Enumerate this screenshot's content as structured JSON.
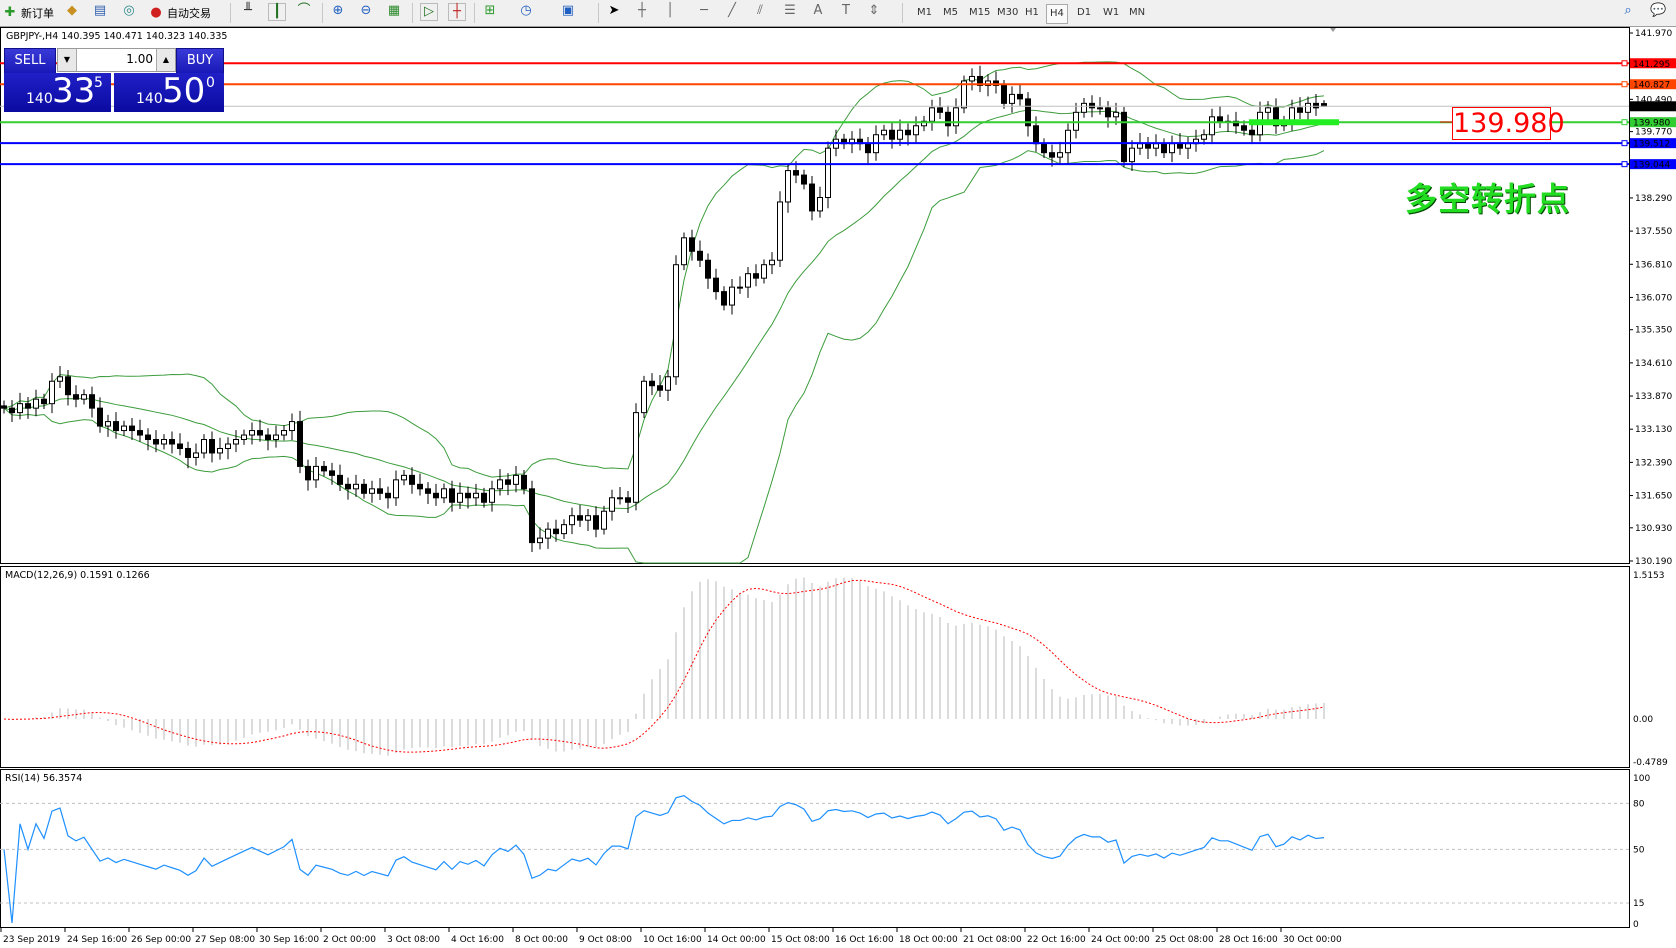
{
  "toolbar": {
    "new_order": "新订单",
    "auto_trading": "自动交易",
    "timeframes": [
      "M1",
      "M5",
      "M15",
      "M30",
      "H1",
      "H4",
      "D1",
      "W1",
      "MN"
    ],
    "active_timeframe": "H4"
  },
  "chart_header": "GBPJPY-,H4  140.395 140.471 140.323 140.335",
  "one_click": {
    "sell_label": "SELL",
    "buy_label": "BUY",
    "lot": "1.00",
    "sell_prefix": "140",
    "sell_big": "33",
    "sell_sup": "5",
    "buy_prefix": "140",
    "buy_big": "50",
    "buy_sup": "0"
  },
  "annotation": {
    "price_box": "139.980",
    "text": "多空转折点"
  },
  "colors": {
    "bollinger": "#3c9c3c",
    "red_line": "#ff0000",
    "orange_line": "#ff4500",
    "green_line": "#32cd32",
    "blue_line": "#0000ff",
    "rsi": "#1e90ff",
    "macd_signal": "#ff0000",
    "macd_hist": "#b8b8b8"
  },
  "chart_data": {
    "type": "candlestick",
    "symbol": "GBPJPY-",
    "timeframe": "H4",
    "ohlc_last": {
      "open": 140.395,
      "high": 140.471,
      "low": 140.323,
      "close": 140.335
    },
    "closes": [
      133.6,
      133.5,
      133.7,
      133.6,
      133.8,
      133.7,
      134.2,
      134.3,
      133.9,
      133.8,
      133.9,
      133.6,
      133.2,
      133.3,
      133.1,
      133.2,
      133.1,
      133.0,
      132.9,
      132.8,
      132.9,
      132.8,
      132.7,
      132.5,
      132.6,
      132.9,
      132.6,
      132.7,
      132.8,
      132.9,
      133.0,
      133.1,
      133.0,
      132.9,
      133.0,
      133.1,
      133.3,
      132.3,
      132.0,
      132.3,
      132.2,
      132.1,
      131.9,
      131.8,
      131.9,
      131.7,
      131.8,
      131.7,
      131.6,
      132.0,
      132.1,
      131.9,
      131.8,
      131.7,
      131.6,
      131.8,
      131.5,
      131.7,
      131.6,
      131.7,
      131.5,
      131.8,
      132.0,
      131.9,
      132.1,
      131.8,
      130.6,
      130.7,
      130.9,
      130.8,
      131.0,
      131.2,
      131.1,
      131.2,
      130.9,
      131.3,
      131.6,
      131.6,
      131.5,
      133.5,
      134.2,
      134.1,
      134.0,
      134.3,
      136.8,
      137.4,
      137.1,
      136.9,
      136.5,
      136.2,
      135.9,
      136.3,
      136.3,
      136.6,
      136.5,
      136.8,
      136.9,
      138.2,
      138.9,
      138.8,
      138.6,
      138.0,
      138.3,
      139.4,
      139.6,
      139.5,
      139.6,
      139.5,
      139.3,
      139.7,
      139.8,
      139.6,
      139.8,
      139.7,
      139.9,
      140.0,
      140.3,
      140.2,
      139.9,
      140.3,
      140.9,
      141.0,
      140.8,
      140.9,
      140.8,
      140.4,
      140.6,
      140.5,
      139.9,
      139.5,
      139.3,
      139.2,
      139.3,
      139.8,
      140.2,
      140.4,
      140.3,
      140.3,
      140.1,
      140.2,
      139.1,
      139.4,
      139.5,
      139.4,
      139.5,
      139.3,
      139.5,
      139.4,
      139.5,
      139.6,
      139.7,
      140.1,
      140.0,
      140.0,
      139.9,
      139.8,
      139.7,
      140.2,
      140.3,
      139.9,
      140.0,
      140.3,
      140.2,
      140.4,
      140.3,
      140.335
    ],
    "price_axis": [
      "141.970",
      "140.490",
      "139.770",
      "138.290",
      "137.550",
      "136.810",
      "136.070",
      "135.350",
      "134.610",
      "133.870",
      "133.130",
      "132.390",
      "131.650",
      "130.930",
      "130.190"
    ],
    "price_range": [
      130.19,
      141.97
    ],
    "horizontal_lines": [
      {
        "price": "141.295",
        "color": "#ff0000"
      },
      {
        "price": "140.827",
        "color": "#ff4500"
      },
      {
        "price": "140.335",
        "color": "#000000",
        "kind": "bid"
      },
      {
        "price": "139.980",
        "color": "#32cd32"
      },
      {
        "price": "139.512",
        "color": "#0000ff"
      },
      {
        "price": "139.044",
        "color": "#0000ff"
      }
    ],
    "time_axis": [
      "23 Sep 2019",
      "24 Sep 16:00",
      "26 Sep 00:00",
      "27 Sep 08:00",
      "30 Sep 16:00",
      "2 Oct 00:00",
      "3 Oct 08:00",
      "4 Oct 16:00",
      "8 Oct 00:00",
      "9 Oct 08:00",
      "10 Oct 16:00",
      "14 Oct 00:00",
      "15 Oct 08:00",
      "16 Oct 16:00",
      "18 Oct 00:00",
      "21 Oct 08:00",
      "22 Oct 16:00",
      "24 Oct 00:00",
      "25 Oct 08:00",
      "28 Oct 16:00",
      "30 Oct 00:00"
    ],
    "bollinger": {
      "period": 20,
      "deviation": 2
    }
  },
  "macd": {
    "title": "MACD(12,26,9) 0.1591 0.1266",
    "axis": [
      "1.5153",
      "0.00",
      "-0.4789"
    ],
    "range": [
      -0.4789,
      1.5153
    ]
  },
  "rsi": {
    "title": "RSI(14) 56.3574",
    "axis": [
      "100",
      "80",
      "50",
      "15",
      "0"
    ],
    "levels": [
      80,
      50,
      15
    ]
  }
}
